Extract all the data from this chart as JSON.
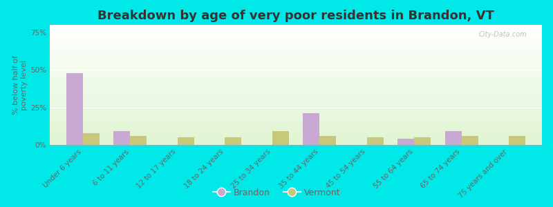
{
  "title": "Breakdown by age of very poor residents in Brandon, VT",
  "ylabel": "% below half of\npoverty level",
  "categories": [
    "Under 6 years",
    "6 to 11 years",
    "12 to 17 years",
    "18 to 24 years",
    "25 to 34 years",
    "35 to 44 years",
    "45 to 54 years",
    "55 to 64 years",
    "65 to 74 years",
    "75 years and over"
  ],
  "brandon_values": [
    48,
    9,
    0,
    0,
    0,
    21,
    0,
    4,
    9,
    0
  ],
  "vermont_values": [
    8,
    6,
    5,
    5,
    9,
    6,
    5,
    5,
    6,
    6
  ],
  "brandon_color": "#c9a8d4",
  "vermont_color": "#c8c87a",
  "bar_width": 0.35,
  "ylim": [
    0,
    80
  ],
  "yticks": [
    0,
    25,
    50,
    75
  ],
  "ytick_labels": [
    "0%",
    "25%",
    "50%",
    "75%"
  ],
  "outer_bg": "#00e8e8",
  "title_fontsize": 13,
  "axis_label_fontsize": 8,
  "tick_label_fontsize": 7.5,
  "legend_fontsize": 9,
  "text_color": "#666666"
}
